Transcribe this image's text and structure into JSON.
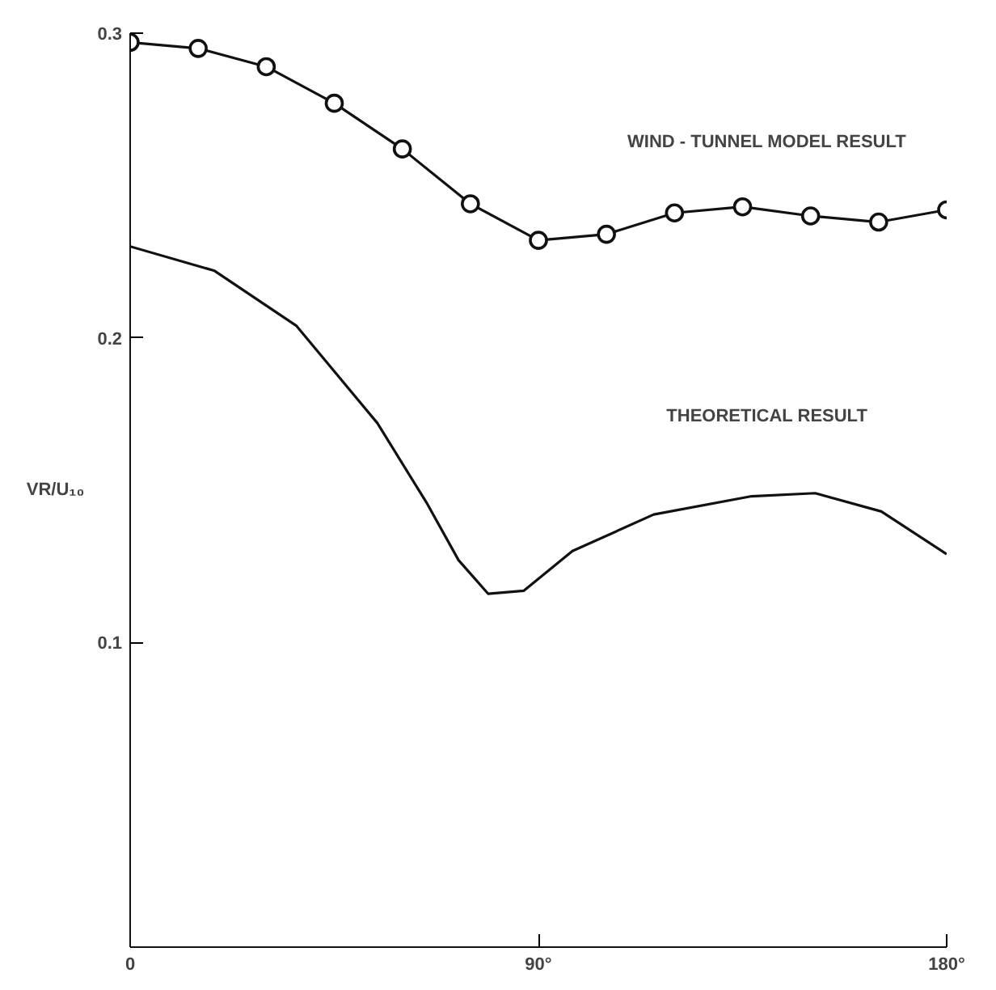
{
  "chart_data": {
    "type": "line",
    "ylabel": "VR/U₁₀",
    "xlim": [
      0,
      180
    ],
    "ylim": [
      0,
      0.3
    ],
    "xticks": [
      {
        "value": 0,
        "label": "0"
      },
      {
        "value": 90,
        "label": "90°"
      },
      {
        "value": 180,
        "label": "180°"
      }
    ],
    "yticks": [
      0.1,
      0.2,
      0.3
    ],
    "grid": false,
    "series": [
      {
        "color": "#111111",
        "marker": "circle",
        "x": [
          0,
          15,
          30,
          45,
          60,
          75,
          90,
          105,
          120,
          135,
          150,
          165,
          180
        ],
        "values": [
          0.297,
          0.295,
          0.289,
          0.277,
          0.262,
          0.244,
          0.232,
          0.234,
          0.241,
          0.243,
          0.24,
          0.238,
          0.242
        ]
      },
      {
        "color": "#111111",
        "marker": "none",
        "x": [
          0,
          18.6,
          36.6,
          54.5,
          65.3,
          72.4,
          78.9,
          86.8,
          97.5,
          115.4,
          137,
          151,
          165.6,
          180
        ],
        "values": [
          0.23,
          0.222,
          0.204,
          0.172,
          0.146,
          0.127,
          0.116,
          0.117,
          0.13,
          0.142,
          0.148,
          0.149,
          0.143,
          0.129
        ]
      }
    ],
    "annotations": [
      "WIND - TUNNEL MODEL RESULT",
      "THEORETICAL RESULT"
    ]
  }
}
